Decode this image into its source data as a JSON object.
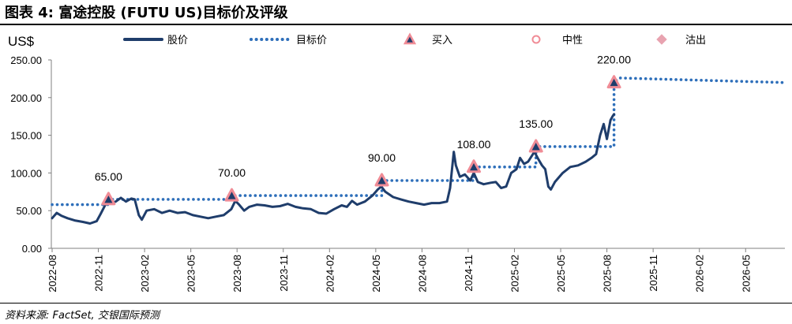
{
  "header": {
    "title": "图表 4: 富途控股 (FUTU US)目标价及评级"
  },
  "footer": {
    "source": "资料来源: FactSet, 交银国际预测"
  },
  "chart_data": {
    "type": "line",
    "unit_label": "US$",
    "ylim": [
      0,
      250
    ],
    "yticks": [
      "0.00",
      "50.00",
      "100.00",
      "150.00",
      "200.00",
      "250.00"
    ],
    "xticks": [
      "2022-08",
      "2022-11",
      "2023-02",
      "2023-05",
      "2023-08",
      "2023-11",
      "2024-02",
      "2024-05",
      "2024-08",
      "2024-11",
      "2025-02",
      "2025-05",
      "2025-08",
      "2025-11",
      "2026-02",
      "2026-05"
    ],
    "grid": false,
    "legend_position": "top",
    "legend": [
      {
        "key": "price",
        "label": "股价"
      },
      {
        "key": "target",
        "label": "目标价"
      },
      {
        "key": "buy",
        "label": "买入"
      },
      {
        "key": "neutral",
        "label": "中性"
      },
      {
        "key": "sell",
        "label": "沽出"
      }
    ],
    "colors": {
      "price": "#1f3d6b",
      "target": "#2e6fba",
      "marker_fill": "#1f3d6b",
      "marker_edge": "#f08c96",
      "neutral": "#f08c96",
      "sell": "#e8a3b0",
      "axis": "#808080"
    },
    "price_series": [
      [
        "2022-08-01",
        40
      ],
      [
        "2022-08-10",
        47
      ],
      [
        "2022-08-20",
        43
      ],
      [
        "2022-09-01",
        40
      ],
      [
        "2022-09-15",
        37
      ],
      [
        "2022-10-01",
        35
      ],
      [
        "2022-10-15",
        33
      ],
      [
        "2022-10-28",
        36
      ],
      [
        "2022-11-05",
        45
      ],
      [
        "2022-11-15",
        58
      ],
      [
        "2022-11-25",
        60
      ],
      [
        "2022-12-05",
        62
      ],
      [
        "2022-12-15",
        67
      ],
      [
        "2022-12-25",
        62
      ],
      [
        "2023-01-05",
        66
      ],
      [
        "2023-01-12",
        65
      ],
      [
        "2023-01-20",
        44
      ],
      [
        "2023-01-26",
        38
      ],
      [
        "2023-02-05",
        50
      ],
      [
        "2023-02-20",
        52
      ],
      [
        "2023-03-05",
        47
      ],
      [
        "2023-03-20",
        50
      ],
      [
        "2023-04-05",
        47
      ],
      [
        "2023-04-20",
        48
      ],
      [
        "2023-05-05",
        44
      ],
      [
        "2023-05-20",
        42
      ],
      [
        "2023-06-05",
        40
      ],
      [
        "2023-06-20",
        42
      ],
      [
        "2023-07-05",
        44
      ],
      [
        "2023-07-20",
        52
      ],
      [
        "2023-07-28",
        63
      ],
      [
        "2023-08-05",
        58
      ],
      [
        "2023-08-15",
        50
      ],
      [
        "2023-08-25",
        55
      ],
      [
        "2023-09-10",
        58
      ],
      [
        "2023-09-25",
        57
      ],
      [
        "2023-10-10",
        55
      ],
      [
        "2023-10-25",
        56
      ],
      [
        "2023-11-10",
        59
      ],
      [
        "2023-11-25",
        55
      ],
      [
        "2023-12-10",
        53
      ],
      [
        "2023-12-25",
        52
      ],
      [
        "2024-01-10",
        47
      ],
      [
        "2024-01-25",
        46
      ],
      [
        "2024-02-10",
        52
      ],
      [
        "2024-02-25",
        57
      ],
      [
        "2024-03-05",
        55
      ],
      [
        "2024-03-15",
        63
      ],
      [
        "2024-03-25",
        58
      ],
      [
        "2024-04-10",
        62
      ],
      [
        "2024-04-25",
        70
      ],
      [
        "2024-05-05",
        78
      ],
      [
        "2024-05-12",
        82
      ],
      [
        "2024-05-20",
        75
      ],
      [
        "2024-06-05",
        68
      ],
      [
        "2024-06-20",
        65
      ],
      [
        "2024-07-05",
        62
      ],
      [
        "2024-07-20",
        60
      ],
      [
        "2024-08-05",
        58
      ],
      [
        "2024-08-20",
        60
      ],
      [
        "2024-09-05",
        60
      ],
      [
        "2024-09-20",
        62
      ],
      [
        "2024-09-26",
        80
      ],
      [
        "2024-10-01",
        115
      ],
      [
        "2024-10-03",
        128
      ],
      [
        "2024-10-07",
        110
      ],
      [
        "2024-10-15",
        95
      ],
      [
        "2024-10-25",
        98
      ],
      [
        "2024-11-05",
        90
      ],
      [
        "2024-11-12",
        100
      ],
      [
        "2024-11-20",
        88
      ],
      [
        "2024-12-01",
        85
      ],
      [
        "2024-12-15",
        87
      ],
      [
        "2024-12-25",
        88
      ],
      [
        "2025-01-05",
        80
      ],
      [
        "2025-01-15",
        82
      ],
      [
        "2025-01-25",
        100
      ],
      [
        "2025-02-05",
        105
      ],
      [
        "2025-02-12",
        120
      ],
      [
        "2025-02-20",
        112
      ],
      [
        "2025-02-28",
        115
      ],
      [
        "2025-03-10",
        128
      ],
      [
        "2025-03-18",
        118
      ],
      [
        "2025-03-25",
        110
      ],
      [
        "2025-04-01",
        105
      ],
      [
        "2025-04-07",
        82
      ],
      [
        "2025-04-12",
        78
      ],
      [
        "2025-04-20",
        88
      ],
      [
        "2025-05-05",
        100
      ],
      [
        "2025-05-20",
        108
      ],
      [
        "2025-06-05",
        110
      ],
      [
        "2025-06-20",
        115
      ],
      [
        "2025-07-01",
        120
      ],
      [
        "2025-07-10",
        125
      ],
      [
        "2025-07-18",
        150
      ],
      [
        "2025-07-25",
        165
      ],
      [
        "2025-08-01",
        145
      ],
      [
        "2025-08-08",
        170
      ],
      [
        "2025-08-12",
        175
      ],
      [
        "2025-08-15",
        178
      ]
    ],
    "target_series": [
      [
        "2022-08-01",
        58
      ],
      [
        "2022-11-21",
        58
      ],
      [
        "2022-11-21",
        65
      ],
      [
        "2023-07-21",
        65
      ],
      [
        "2023-07-21",
        70
      ],
      [
        "2024-05-13",
        70
      ],
      [
        "2024-05-13",
        90
      ],
      [
        "2024-11-12",
        90
      ],
      [
        "2024-11-12",
        108
      ],
      [
        "2025-03-13",
        108
      ],
      [
        "2025-03-13",
        135
      ],
      [
        "2025-08-15",
        135
      ],
      [
        "2025-08-15",
        220
      ],
      [
        "2025-08-25",
        226
      ],
      [
        "2026-07-15",
        220
      ]
    ],
    "ratings": [
      {
        "date": "2022-11-21",
        "value": 65,
        "rating": "buy",
        "label": "65.00"
      },
      {
        "date": "2023-07-21",
        "value": 70,
        "rating": "buy",
        "label": "70.00"
      },
      {
        "date": "2024-05-13",
        "value": 90,
        "rating": "buy",
        "label": "90.00"
      },
      {
        "date": "2024-11-12",
        "value": 108,
        "rating": "buy",
        "label": "108.00"
      },
      {
        "date": "2025-03-13",
        "value": 135,
        "rating": "buy",
        "label": "135.00"
      },
      {
        "date": "2025-08-15",
        "value": 220,
        "rating": "buy",
        "label": "220.00"
      }
    ]
  }
}
